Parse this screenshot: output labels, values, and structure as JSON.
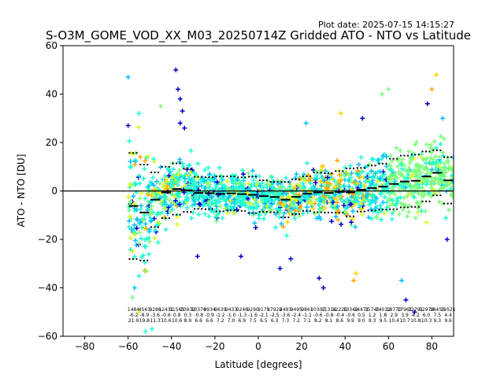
{
  "plot_date": "Plot date: 2025-07-15 14:15:27",
  "chart_data": {
    "type": "scatter",
    "title": "S-O3M_GOME_VOD_XX_M03_20250714Z Gridded ATO - NTO vs Latitude",
    "xlabel": "Latitude [degrees]",
    "ylabel": "ATO - NTO [DU]",
    "xlim": [
      -90,
      90
    ],
    "ylim": [
      -60,
      60
    ],
    "xticks": [
      -80,
      -60,
      -40,
      -20,
      0,
      20,
      40,
      60,
      80
    ],
    "yticks": [
      -60,
      -40,
      -20,
      0,
      20,
      40,
      60
    ],
    "xtick_labels": [
      "−80",
      "−60",
      "−40",
      "−20",
      "0",
      "20",
      "40",
      "60",
      "80"
    ],
    "ytick_labels": [
      "−60",
      "−40",
      "−20",
      "0",
      "20",
      "40",
      "60"
    ],
    "grid": false,
    "zero_line": 0,
    "marker": "+",
    "colors": [
      "#0000cd",
      "#00bfff",
      "#1affd5",
      "#7dff7a",
      "#d5ff1a",
      "#ffd700",
      "#ffa500"
    ],
    "bin_width": 5,
    "bin_centers": [
      -57.5,
      -52.5,
      -47.5,
      -42.5,
      -37.5,
      -32.5,
      -27.5,
      -22.5,
      -17.5,
      -12.5,
      -7.5,
      -2.5,
      2.5,
      7.5,
      12.5,
      17.5,
      22.5,
      27.5,
      32.5,
      37.5,
      42.5,
      47.5,
      52.5,
      57.5,
      62.5,
      67.5,
      72.5,
      77.5,
      82.5,
      87.5
    ],
    "bin_mean": [
      -6.2,
      -8.9,
      -3.6,
      -0.6,
      0.8,
      0.3,
      -0.8,
      -0.9,
      -1.2,
      -1.0,
      -1.3,
      -1.6,
      -2.1,
      -2.5,
      -3.6,
      -2.4,
      -1.1,
      -0.6,
      -0.8,
      -0.4,
      -0.6,
      0.5,
      1.2,
      1.8,
      2.9,
      3.9,
      4.2,
      6.0,
      7.5,
      4.4
    ],
    "bin_std": [
      21.9,
      19.8,
      11.3,
      10.6,
      10.6,
      8.9,
      6.6,
      6.6,
      7.2,
      7.0,
      6.9,
      7.5,
      6.5,
      6.3,
      7.3,
      7.2,
      7.1,
      8.2,
      8.1,
      8.6,
      9.9,
      9.0,
      9.3,
      9.5,
      10.4,
      10.7,
      10.8,
      10.3,
      9.3,
      9.6
    ],
    "bin_counts": [
      "1484",
      "4563",
      "9286",
      "12431",
      "11565",
      "10932",
      "10376",
      "9934",
      "9639",
      "9433",
      "9246",
      "9290",
      "9179",
      "17928",
      "2493",
      "9495",
      "9861",
      "10307",
      "11314",
      "12226",
      "13342",
      "14471",
      "15745",
      "14012",
      "18770",
      "17961",
      "12791",
      "12974",
      "18453",
      "19521"
    ],
    "bin_mean_labels": [
      "-6.2",
      "-8.9",
      "-3.6",
      "-0.6",
      "0.8",
      "0.3",
      "-0.8",
      "-0.9",
      "-1.2",
      "-1.0",
      "-1.3",
      "-1.6",
      "-2.1",
      "-2.5",
      "-3.6",
      "-2.4",
      "-1.1",
      "-0.6",
      "-0.8",
      "-0.4",
      "-0.6",
      "0.5",
      "1.2",
      "1.8",
      "2.9",
      "3.9",
      "4.2",
      "6.0",
      "7.5",
      "4.4"
    ],
    "bin_std_labels": [
      "21.9",
      "19.8",
      "11.3",
      "10.6",
      "10.6",
      "8.9",
      "6.6",
      "6.6",
      "7.2",
      "7.0",
      "6.9",
      "7.5",
      "6.5",
      "6.3",
      "7.3",
      "7.2",
      "7.1",
      "8.2",
      "8.1",
      "8.6",
      "9.9",
      "9.0",
      "9.3",
      "9.5",
      "10.4",
      "10.7",
      "10.8",
      "10.3",
      "9.3",
      "9.6"
    ],
    "outliers": [
      {
        "x": -60,
        "y": 47,
        "c": "#00bfff"
      },
      {
        "x": -38,
        "y": 50,
        "c": "#0000cd"
      },
      {
        "x": -37,
        "y": 42,
        "c": "#0000cd"
      },
      {
        "x": -36,
        "y": 38,
        "c": "#0000cd"
      },
      {
        "x": -35,
        "y": 33,
        "c": "#0000cd"
      },
      {
        "x": -36,
        "y": 28,
        "c": "#0000cd"
      },
      {
        "x": -34,
        "y": 26,
        "c": "#0000cd"
      },
      {
        "x": -45,
        "y": 35,
        "c": "#7dff7a"
      },
      {
        "x": -55,
        "y": 32,
        "c": "#1affd5"
      },
      {
        "x": -52,
        "y": -58,
        "c": "#1affd5"
      },
      {
        "x": -49,
        "y": -57,
        "c": "#1affd5"
      },
      {
        "x": -55,
        "y": -50,
        "c": "#d5ff1a"
      },
      {
        "x": -58,
        "y": -44,
        "c": "#7dff7a"
      },
      {
        "x": -57,
        "y": -40,
        "c": "#00bfff"
      },
      {
        "x": -60,
        "y": 27,
        "c": "#0000cd"
      },
      {
        "x": 48,
        "y": 30,
        "c": "#0000cd"
      },
      {
        "x": 57,
        "y": 40,
        "c": "#7dff7a"
      },
      {
        "x": 60,
        "y": 42,
        "c": "#7dff7a"
      },
      {
        "x": 82,
        "y": 48,
        "c": "#ffd700"
      },
      {
        "x": 80,
        "y": 42,
        "c": "#ffa500"
      },
      {
        "x": 78,
        "y": 36,
        "c": "#0000cd"
      },
      {
        "x": 68,
        "y": -45,
        "c": "#0000cd"
      },
      {
        "x": 72,
        "y": -50,
        "c": "#0000cd"
      },
      {
        "x": 66,
        "y": -37,
        "c": "#00bfff"
      },
      {
        "x": 30,
        "y": -40,
        "c": "#0000cd"
      },
      {
        "x": 28,
        "y": -36,
        "c": "#0000cd"
      },
      {
        "x": 44,
        "y": -37,
        "c": "#ffa500"
      },
      {
        "x": 45,
        "y": -34,
        "c": "#ffd700"
      },
      {
        "x": 10,
        "y": -32,
        "c": "#0000cd"
      },
      {
        "x": -8,
        "y": -27,
        "c": "#0000cd"
      },
      {
        "x": 15,
        "y": -28,
        "c": "#0000cd"
      },
      {
        "x": 22,
        "y": 28,
        "c": "#00bfff"
      },
      {
        "x": 38,
        "y": 32,
        "c": "#ffd700"
      },
      {
        "x": -28,
        "y": -27,
        "c": "#0000cd"
      },
      {
        "x": 87,
        "y": -20,
        "c": "#0000cd"
      },
      {
        "x": 85,
        "y": 30,
        "c": "#00bfff"
      }
    ]
  }
}
